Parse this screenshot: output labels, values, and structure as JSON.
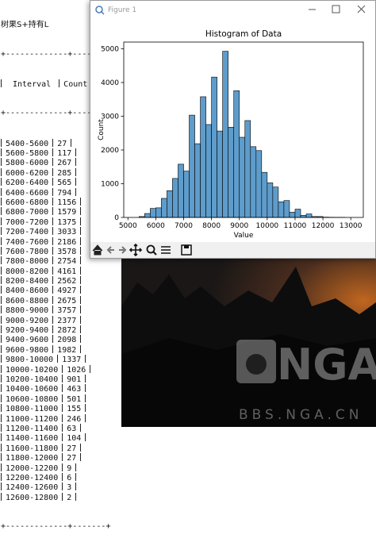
{
  "terminal": {
    "title": "树果S+持有L",
    "separator": "+-------------+-------+",
    "header": [
      "Interval",
      "Count"
    ],
    "rows": [
      [
        "5400-5600",
        27
      ],
      [
        "5600-5800",
        117
      ],
      [
        "5800-6000",
        267
      ],
      [
        "6000-6200",
        285
      ],
      [
        "6200-6400",
        565
      ],
      [
        "6400-6600",
        794
      ],
      [
        "6600-6800",
        1156
      ],
      [
        "6800-7000",
        1579
      ],
      [
        "7000-7200",
        1375
      ],
      [
        "7200-7400",
        3033
      ],
      [
        "7400-7600",
        2186
      ],
      [
        "7600-7800",
        3578
      ],
      [
        "7800-8000",
        2754
      ],
      [
        "8000-8200",
        4161
      ],
      [
        "8200-8400",
        2562
      ],
      [
        "8400-8600",
        4927
      ],
      [
        "8600-8800",
        2675
      ],
      [
        "8800-9000",
        3757
      ],
      [
        "9000-9200",
        2377
      ],
      [
        "9200-9400",
        2872
      ],
      [
        "9400-9600",
        2098
      ],
      [
        "9600-9800",
        1982
      ],
      [
        "9800-10000",
        1337
      ],
      [
        "10000-10200",
        1026
      ],
      [
        "10200-10400",
        901
      ],
      [
        "10400-10600",
        463
      ],
      [
        "10600-10800",
        501
      ],
      [
        "10800-11000",
        155
      ],
      [
        "11000-11200",
        246
      ],
      [
        "11200-11400",
        63
      ],
      [
        "11400-11600",
        104
      ],
      [
        "11600-11800",
        27
      ],
      [
        "11800-12000",
        27
      ],
      [
        "12000-12200",
        9
      ],
      [
        "12200-12400",
        6
      ],
      [
        "12400-12600",
        3
      ],
      [
        "12600-12800",
        2
      ]
    ]
  },
  "window": {
    "title": "Figure 1"
  },
  "chart_data": {
    "type": "histogram",
    "title": "Histogram of Data",
    "x_label": "Value",
    "y_label": "Count",
    "bins": [
      5400,
      5600,
      5800,
      6000,
      6200,
      6400,
      6600,
      6800,
      7000,
      7200,
      7400,
      7600,
      7800,
      8000,
      8200,
      8400,
      8600,
      8800,
      9000,
      9200,
      9400,
      9600,
      9800,
      10000,
      10200,
      10400,
      10600,
      10800,
      11000,
      11200,
      11400,
      11600,
      11800,
      12000,
      12200,
      12400,
      12600,
      12800
    ],
    "values": [
      27,
      117,
      267,
      285,
      565,
      794,
      1156,
      1579,
      1375,
      3033,
      2186,
      3578,
      2754,
      4161,
      2562,
      4927,
      2675,
      3757,
      2377,
      2872,
      2098,
      1982,
      1337,
      1026,
      901,
      463,
      501,
      155,
      246,
      63,
      104,
      27,
      27,
      9,
      6,
      3,
      2
    ],
    "color": "#5e9ccb",
    "edge_color": "#000000",
    "xlim": [
      4850,
      13450
    ],
    "xticks": [
      5000,
      6000,
      7000,
      8000,
      9000,
      10000,
      11000,
      12000,
      13000
    ],
    "ylim": [
      0,
      5200
    ],
    "yticks": [
      0,
      1000,
      2000,
      3000,
      4000,
      5000
    ],
    "grid": false
  },
  "watermark": {
    "logo": "NGA",
    "site": "BBS.NGA.CN"
  }
}
